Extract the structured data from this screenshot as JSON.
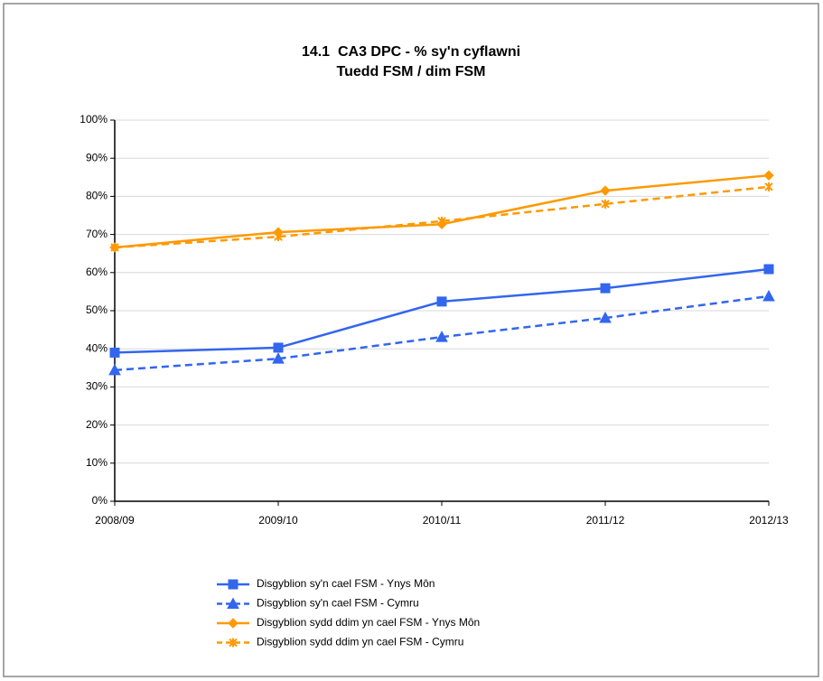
{
  "chart_data": {
    "type": "line",
    "title": "14.1  CA3 DPC - % sy'n cyflawni",
    "subtitle": "Tuedd FSM / dim FSM",
    "categories": [
      "2008/09",
      "2009/10",
      "2010/11",
      "2011/12",
      "2012/13"
    ],
    "series": [
      {
        "name": "Disgyblion sy'n cael FSM - Ynys Môn",
        "color": "#3366ee",
        "dashed": false,
        "marker": "square",
        "values": [
          39,
          40.3,
          52.4,
          55.9,
          60.9
        ]
      },
      {
        "name": "Disgyblion sy'n cael FSM - Cymru",
        "color": "#3366ee",
        "dashed": true,
        "marker": "triangle",
        "values": [
          34.4,
          37.4,
          43.1,
          48.1,
          53.8
        ]
      },
      {
        "name": "Disgyblion sydd ddim yn cael FSM - Ynys Môn",
        "color": "#ff9900",
        "dashed": false,
        "marker": "diamond",
        "values": [
          66.6,
          70.6,
          72.7,
          81.5,
          85.5
        ]
      },
      {
        "name": "Disgyblion sydd ddim yn cael FSM - Cymru",
        "color": "#ff9900",
        "dashed": true,
        "marker": "cross",
        "values": [
          66.6,
          69.4,
          73.5,
          78,
          82.5
        ]
      }
    ],
    "ylim": [
      0,
      100
    ],
    "yticks": [
      {
        "value": 0,
        "label": "0%"
      },
      {
        "value": 10,
        "label": "10%"
      },
      {
        "value": 20,
        "label": "20%"
      },
      {
        "value": 30,
        "label": "30%"
      },
      {
        "value": 40,
        "label": "40%"
      },
      {
        "value": 50,
        "label": "50%"
      },
      {
        "value": 60,
        "label": "60%"
      },
      {
        "value": 70,
        "label": "70%"
      },
      {
        "value": 80,
        "label": "80%"
      },
      {
        "value": 90,
        "label": "90%"
      },
      {
        "value": 100,
        "label": "100%"
      }
    ],
    "grid": true,
    "legend": "bottom"
  }
}
